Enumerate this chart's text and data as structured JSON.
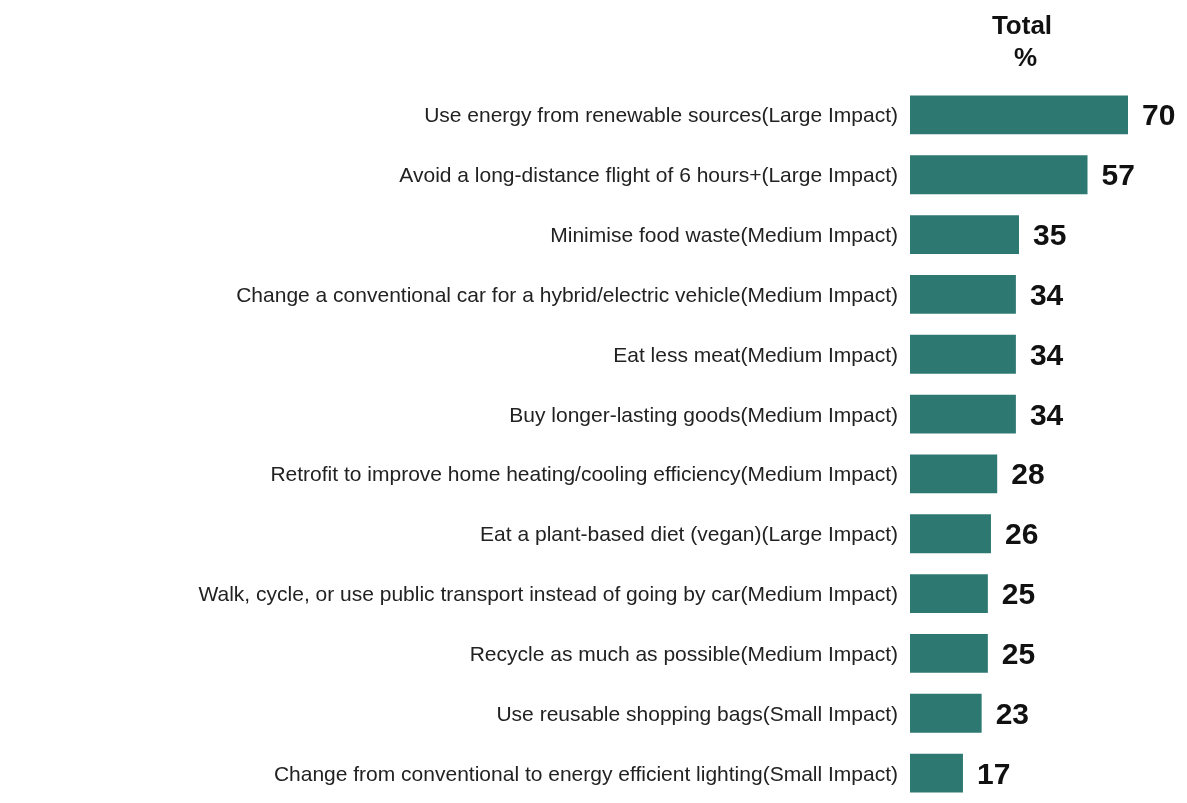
{
  "chart_data": {
    "type": "bar",
    "orientation": "horizontal",
    "title": "Total %",
    "categories": [
      "Use energy from renewable sources(Large Impact)",
      "Avoid a long-distance flight of 6 hours+(Large Impact)",
      "Minimise food waste(Medium Impact)",
      "Change a conventional car for a hybrid/electric vehicle(Medium Impact)",
      "Eat less meat(Medium Impact)",
      "Buy longer-lasting goods(Medium Impact)",
      "Retrofit to improve home heating/cooling efficiency(Medium Impact)",
      "Eat a plant-based diet (vegan)(Large Impact)",
      "Walk, cycle, or use public transport instead of going by car(Medium Impact)",
      "Recycle as much as possible(Medium Impact)",
      "Use reusable shopping bags(Small Impact)",
      "Change from conventional to energy efficient lighting(Small Impact)"
    ],
    "values": [
      70,
      57,
      35,
      34,
      34,
      34,
      28,
      26,
      25,
      25,
      23,
      17
    ],
    "color": "#2e7872",
    "data_labels": true
  }
}
